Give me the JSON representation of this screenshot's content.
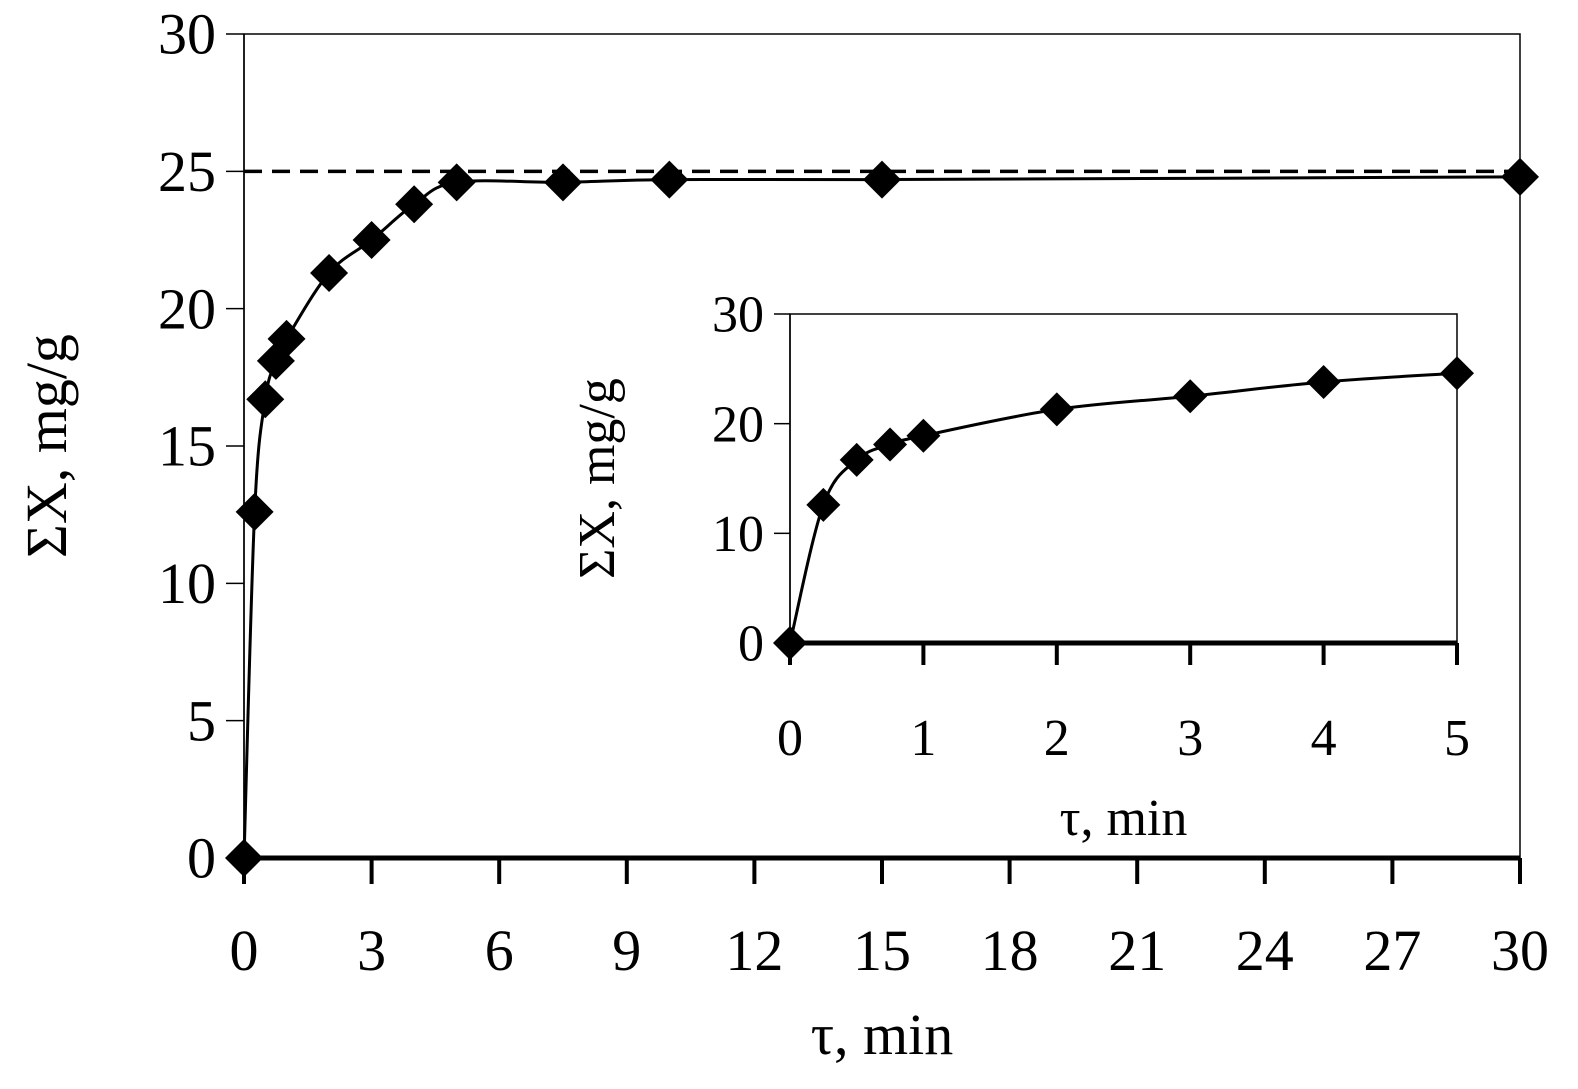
{
  "chart_data": [
    {
      "type": "line",
      "role": "main",
      "xlabel": "τ, min",
      "ylabel": "ΣX, mg/g",
      "xlim": [
        0,
        30
      ],
      "ylim": [
        0,
        30
      ],
      "xticks": [
        0,
        3,
        6,
        9,
        12,
        15,
        18,
        21,
        24,
        27,
        30
      ],
      "yticks": [
        0,
        5,
        10,
        15,
        20,
        25,
        30
      ],
      "grid": false,
      "marker": "diamond",
      "series": [
        {
          "x": [
            0,
            0.25,
            0.5,
            0.75,
            1,
            2,
            3,
            4,
            5,
            7.5,
            10,
            15,
            30
          ],
          "y": [
            0,
            12.6,
            16.7,
            18.1,
            18.9,
            21.3,
            22.5,
            23.8,
            24.6,
            24.6,
            24.7,
            24.7,
            24.8
          ]
        }
      ],
      "reference_line": {
        "y": 25,
        "style": "dashed"
      },
      "colors": {
        "line": "#000000",
        "marker": "#000000"
      }
    },
    {
      "type": "line",
      "role": "inset",
      "xlabel": "τ, min",
      "ylabel": "ΣX, mg/g",
      "xlim": [
        0,
        5
      ],
      "ylim": [
        0,
        30
      ],
      "xticks": [
        0,
        1,
        2,
        3,
        4,
        5
      ],
      "yticks": [
        0,
        10,
        20,
        30
      ],
      "grid": false,
      "marker": "diamond",
      "series": [
        {
          "x": [
            0,
            0.25,
            0.5,
            0.75,
            1,
            2,
            3,
            4,
            5
          ],
          "y": [
            0,
            12.6,
            16.7,
            18.1,
            18.9,
            21.3,
            22.5,
            23.8,
            24.6
          ]
        }
      ],
      "colors": {
        "line": "#000000",
        "marker": "#000000"
      }
    }
  ]
}
